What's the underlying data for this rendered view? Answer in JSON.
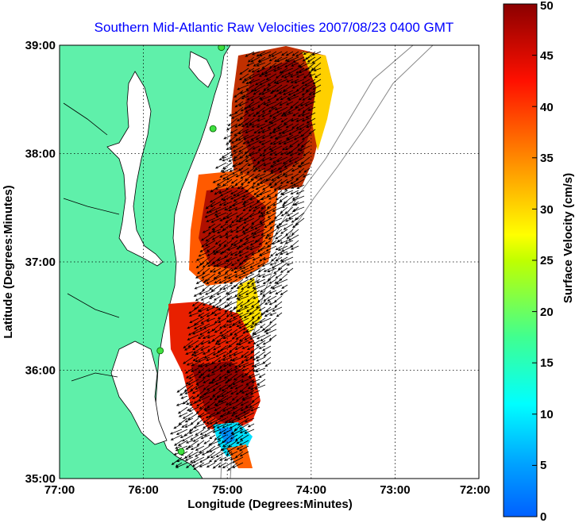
{
  "title": "Southern Mid-Atlantic Raw Velocities 2007/08/23 0400 GMT",
  "x_axis": {
    "label": "Longitude (Degrees:Minutes)",
    "ticks": [
      "77:00",
      "76:00",
      "75:00",
      "74:00",
      "73:00",
      "72:00"
    ]
  },
  "y_axis": {
    "label": "Latitude (Degrees:Minutes)",
    "ticks": [
      "39:00",
      "38:00",
      "37:00",
      "36:00",
      "35:00"
    ]
  },
  "colorbar": {
    "label": "Surface Velocity (cm/s)",
    "ticks": [
      "50",
      "45",
      "40",
      "35",
      "30",
      "25",
      "20",
      "15",
      "10",
      "5",
      "0"
    ],
    "min": 0,
    "max": 50
  },
  "colors": {
    "title": "#0000ff",
    "land": "#5ff0aa",
    "low_velocity": "#0080ff",
    "high_velocity": "#8b0000"
  },
  "map_extent": {
    "lon": [
      -77,
      -72
    ],
    "lat": [
      35,
      39
    ]
  },
  "grid": "dotted",
  "stations": [
    {
      "lon": -75.07,
      "lat": 38.98
    },
    {
      "lon": -75.17,
      "lat": 38.23
    },
    {
      "lon": -75.8,
      "lat": 36.18
    },
    {
      "lon": -75.55,
      "lat": 35.25
    }
  ]
}
